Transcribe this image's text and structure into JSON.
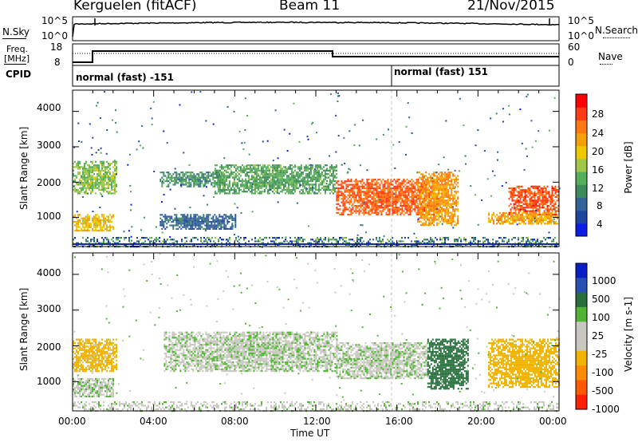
{
  "header": {
    "station": "Kerguelen (fitACF)",
    "beam": "Beam 11",
    "date": "21/Nov/2015"
  },
  "noise_panel": {
    "left_label": "N.Sky",
    "left_ticks": [
      "10^5",
      "10^0"
    ],
    "right_ticks": [
      "10^5",
      "10^0"
    ],
    "right_label": "N.Search"
  },
  "freq_panel": {
    "left_label_1": "Freq.",
    "left_label_2": "[MHz]",
    "left_ticks": [
      "18",
      "8"
    ],
    "right_ticks": [
      "60",
      "0"
    ],
    "right_label": "Nave"
  },
  "cpid": {
    "label": "CPID",
    "modes": [
      "normal (fast) -151",
      "normal (fast) 151"
    ]
  },
  "chart_data": [
    {
      "type": "heatmap",
      "title": "",
      "xlabel": "",
      "ylabel": "Slant Range [km]",
      "x_range_hours": [
        0,
        24
      ],
      "ylim": [
        180,
        4600
      ],
      "y_ticks": [
        "4000",
        "3000",
        "2000",
        "1000"
      ],
      "colorbar": {
        "label": "Power [dB]",
        "range": [
          0,
          32
        ],
        "ticks": [
          "28",
          "24",
          "20",
          "16",
          "12",
          "8",
          "4"
        ]
      },
      "echo_regions": [
        {
          "t": [
            0.0,
            2.2
          ],
          "r": [
            1700,
            2600
          ],
          "value": 15
        },
        {
          "t": [
            0.0,
            2.0
          ],
          "r": [
            650,
            1100
          ],
          "value": 20
        },
        {
          "t": [
            4.3,
            7.5
          ],
          "r": [
            1900,
            2300
          ],
          "value": 10
        },
        {
          "t": [
            4.3,
            8.0
          ],
          "r": [
            700,
            1100
          ],
          "value": 6
        },
        {
          "t": [
            7.0,
            13.0
          ],
          "r": [
            1700,
            2500
          ],
          "value": 12
        },
        {
          "t": [
            13.0,
            18.0
          ],
          "r": [
            1100,
            2100
          ],
          "value": 27
        },
        {
          "t": [
            17.0,
            19.0
          ],
          "r": [
            800,
            2300
          ],
          "value": 23
        },
        {
          "t": [
            21.5,
            24.0
          ],
          "r": [
            1100,
            1900
          ],
          "value": 28
        },
        {
          "t": [
            20.5,
            24.0
          ],
          "r": [
            850,
            1150
          ],
          "value": 22
        }
      ]
    },
    {
      "type": "heatmap",
      "title": "",
      "xlabel": "Time UT",
      "ylabel": "Slant Range [km]",
      "x_range_hours": [
        0,
        24
      ],
      "x_ticks": [
        "00:00",
        "04:00",
        "08:00",
        "12:00",
        "16:00",
        "20:00",
        "00:00"
      ],
      "ylim": [
        180,
        4600
      ],
      "y_ticks": [
        "4000",
        "3000",
        "2000",
        "1000"
      ],
      "colorbar": {
        "label": "Velocity [m s-1]",
        "ticks": [
          "1000",
          "500",
          "100",
          "25",
          "-25",
          "-100",
          "-500",
          "-1000"
        ]
      },
      "echo_regions": [
        {
          "t": [
            0.0,
            2.2
          ],
          "r": [
            1300,
            2200
          ],
          "value": -150
        },
        {
          "t": [
            0.0,
            2.0
          ],
          "r": [
            600,
            1100
          ],
          "value": 0
        },
        {
          "t": [
            4.5,
            13.0
          ],
          "r": [
            1300,
            2400
          ],
          "value": 0
        },
        {
          "t": [
            13.0,
            17.5
          ],
          "r": [
            1100,
            2100
          ],
          "value": 0
        },
        {
          "t": [
            17.5,
            19.5
          ],
          "r": [
            800,
            2200
          ],
          "value": 400
        },
        {
          "t": [
            20.5,
            24.0
          ],
          "r": [
            850,
            2200
          ],
          "value": -200
        }
      ]
    }
  ],
  "colors": {
    "power_scale": [
      "#0a1ee6",
      "#1e46a0",
      "#32649b",
      "#3c8c5a",
      "#55af5a",
      "#a0c846",
      "#f0c800",
      "#f5a00a",
      "#ff7814",
      "#ff3c14",
      "#ff0000"
    ],
    "velocity_scale": [
      "#0a1ec8",
      "#2850b4",
      "#286e3c",
      "#50b432",
      "#c8c8c0",
      "#c8c8c0",
      "#f0b400",
      "#ff8c00",
      "#ff5a00",
      "#ff1e00"
    ]
  }
}
